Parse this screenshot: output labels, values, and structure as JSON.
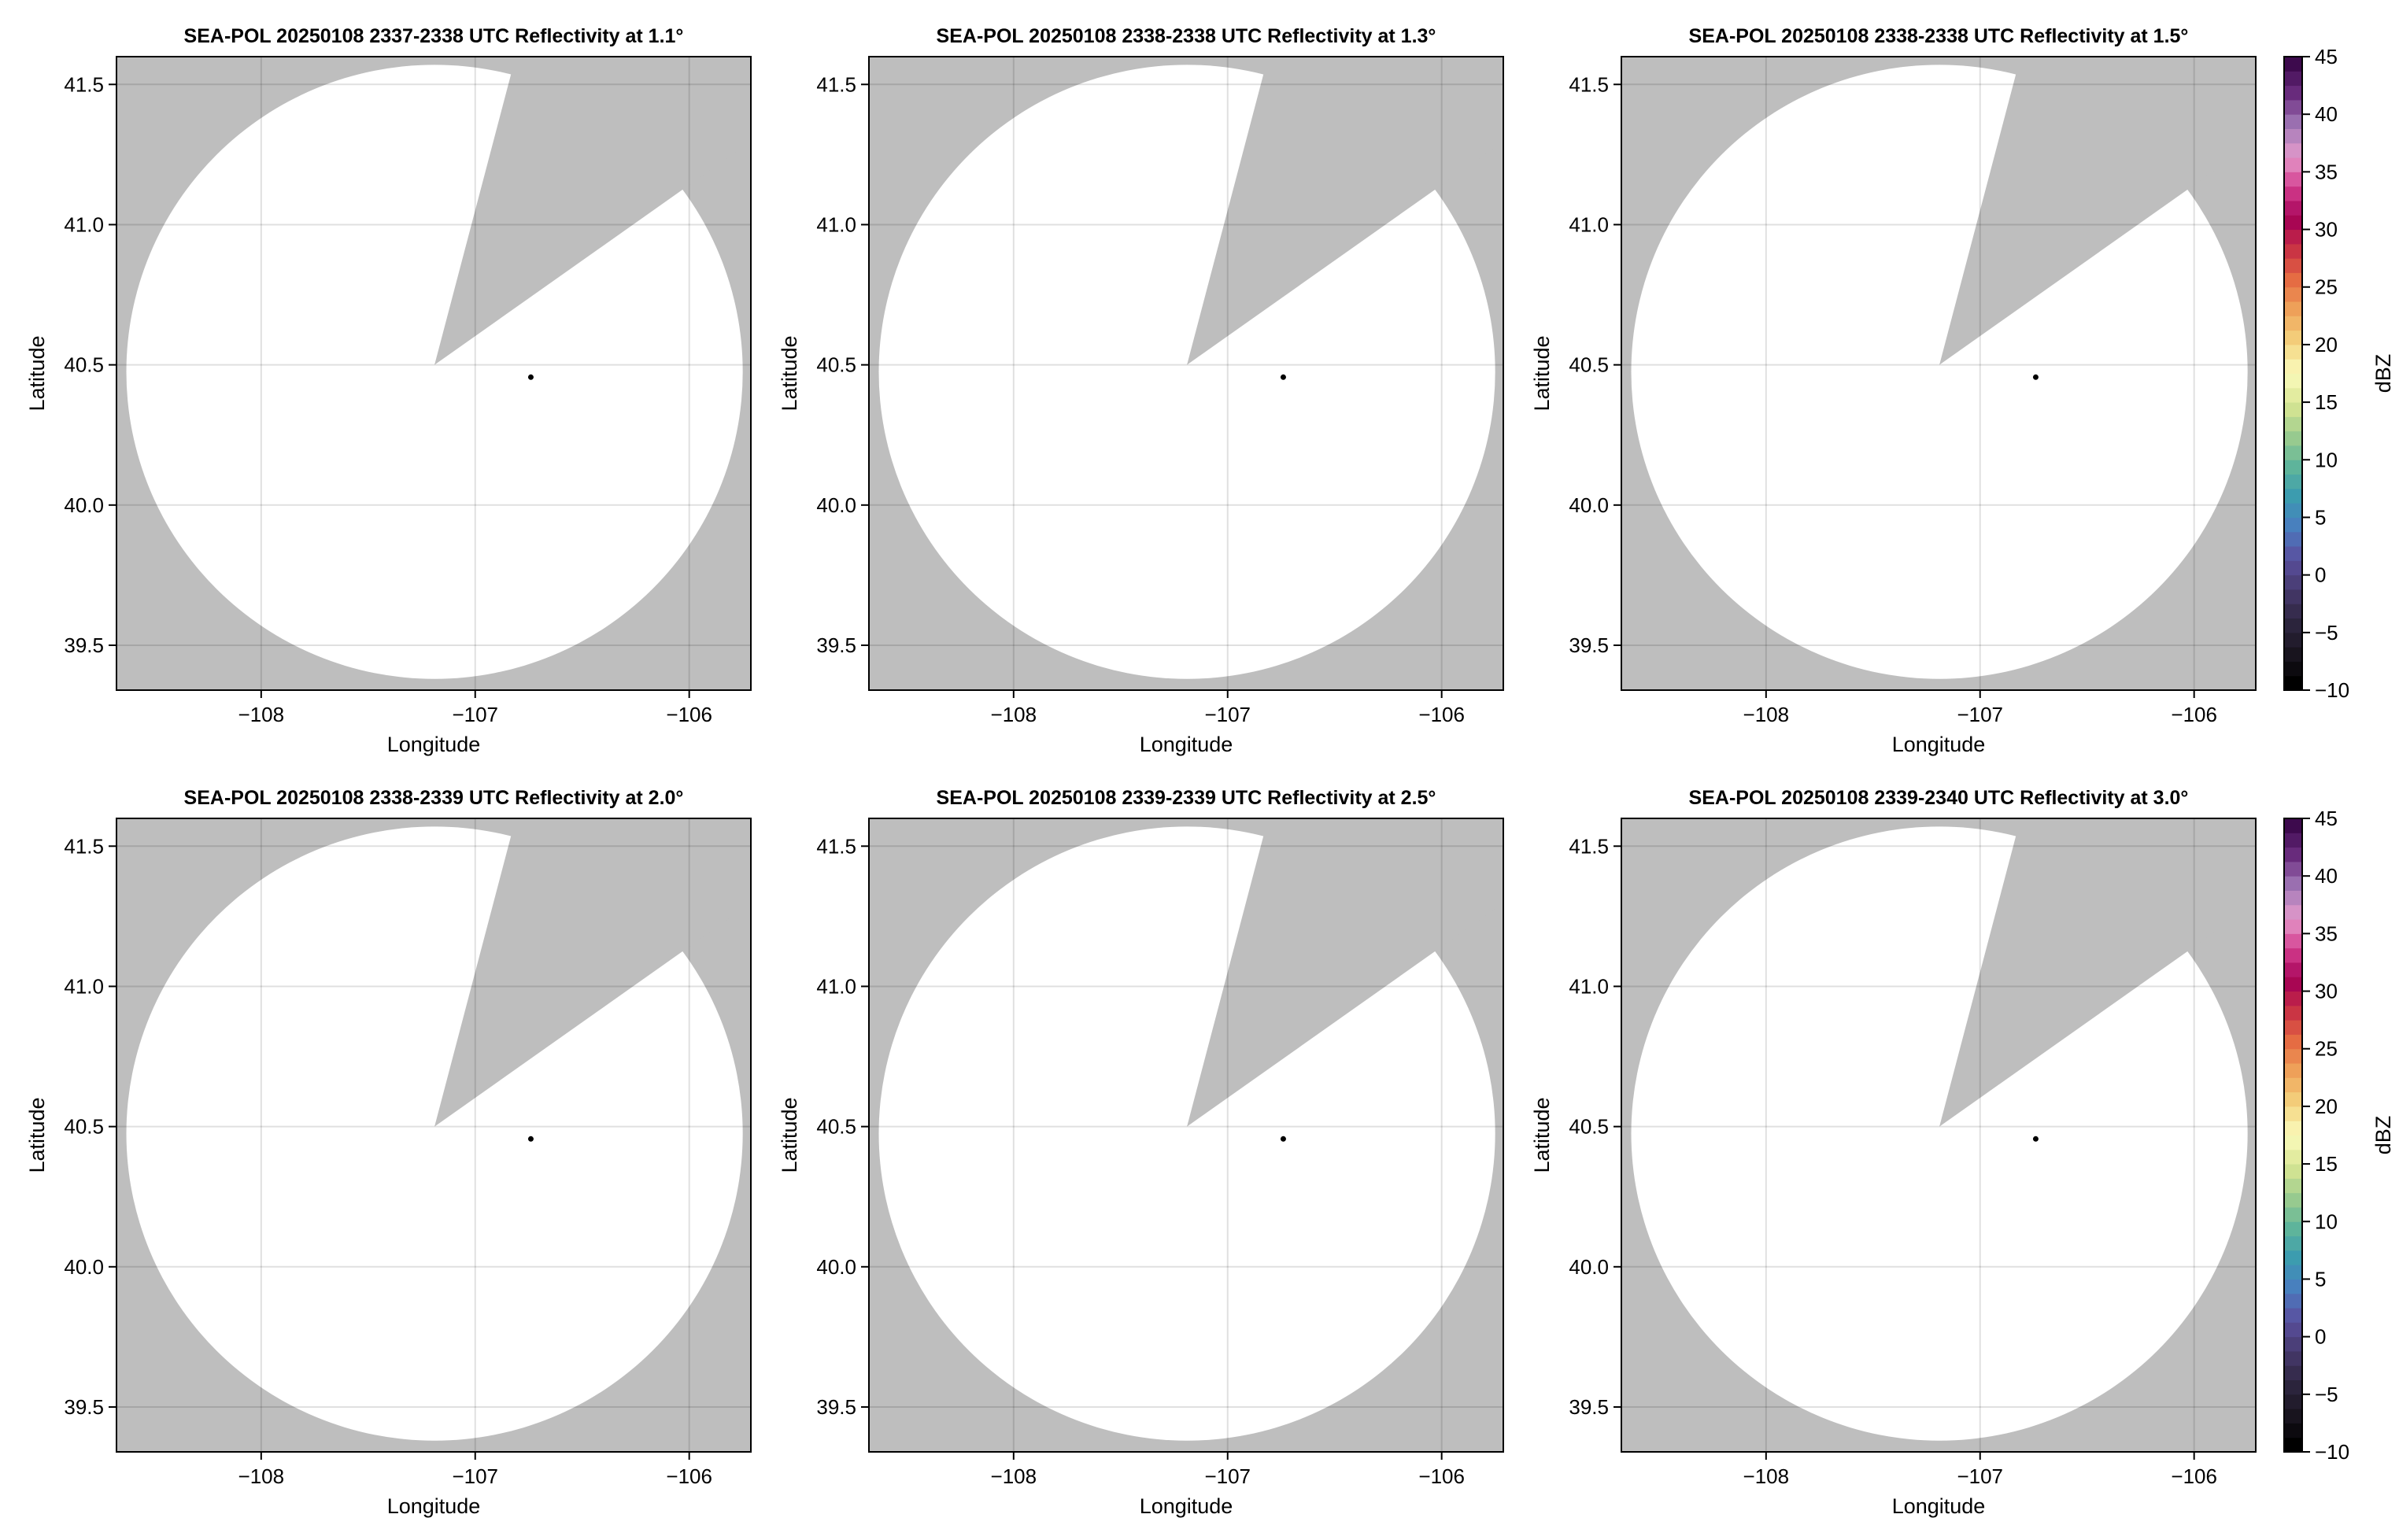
{
  "chart_data": [
    {
      "type": "heatmap",
      "title": "SEA-POL 20250108 2337-2338 UTC Reflectivity at 1.1°",
      "xlabel": "Longitude",
      "ylabel": "Latitude",
      "colorbar": false
    },
    {
      "type": "heatmap",
      "title": "SEA-POL 20250108 2338-2338 UTC Reflectivity at 1.3°",
      "xlabel": "Longitude",
      "ylabel": "Latitude",
      "colorbar": false
    },
    {
      "type": "heatmap",
      "title": "SEA-POL 20250108 2338-2338 UTC Reflectivity at 1.5°",
      "xlabel": "Longitude",
      "ylabel": "Latitude",
      "colorbar": true
    },
    {
      "type": "heatmap",
      "title": "SEA-POL 20250108 2338-2339 UTC Reflectivity at 2.0°",
      "xlabel": "Longitude",
      "ylabel": "Latitude",
      "colorbar": false
    },
    {
      "type": "heatmap",
      "title": "SEA-POL 20250108 2339-2339 UTC Reflectivity at 2.5°",
      "xlabel": "Longitude",
      "ylabel": "Latitude",
      "colorbar": false
    },
    {
      "type": "heatmap",
      "title": "SEA-POL 20250108 2339-2340 UTC Reflectivity at 3.0°",
      "xlabel": "Longitude",
      "ylabel": "Latitude",
      "colorbar": true
    }
  ],
  "shared": {
    "xlim": [
      -108.676,
      -105.712
    ],
    "ylim": [
      39.34,
      41.599
    ],
    "xticks": [
      -108,
      -107,
      -106
    ],
    "xtick_labels": [
      "−108",
      "−107",
      "−106"
    ],
    "yticks": [
      39.5,
      40.0,
      40.5,
      41.0,
      41.5
    ],
    "ytick_labels": [
      "39.5",
      "40.0",
      "40.5",
      "41.0",
      "41.5"
    ],
    "grid": true,
    "data_values": "none (all missing within range)",
    "radar_center": [
      -107.19,
      40.475
    ],
    "range_ring_deg": [
      1.44,
      1.095
    ],
    "blocked_sector_edges": [
      [
        -106.83,
        41.544
      ],
      [
        -106.04,
        41.12
      ]
    ],
    "marker_point": [
      -106.74,
      40.456
    ],
    "colors": {
      "outside_range": "#bebebe",
      "in_range_no_echo": "#ffffff",
      "grid": "#d9d9d9",
      "marker": "#000000"
    }
  },
  "colorbar": {
    "label": "dBZ",
    "range": [
      -10,
      45
    ],
    "ticks": [
      -10,
      -5,
      0,
      5,
      10,
      15,
      20,
      25,
      30,
      35,
      40,
      45
    ],
    "tick_labels": [
      "−10",
      "−5",
      "0",
      "5",
      "10",
      "15",
      "20",
      "25",
      "30",
      "35",
      "40",
      "45"
    ],
    "colormap_stops": [
      "#000000",
      "#1a1520",
      "#2e2640",
      "#46396c",
      "#5a4f9e",
      "#4a7cc0",
      "#3a9bb0",
      "#5fb59a",
      "#9dcc8e",
      "#d9e693",
      "#fbfbbd",
      "#f4d47f",
      "#efa55b",
      "#e66d43",
      "#c93244",
      "#a40055",
      "#d33c8e",
      "#e49acb",
      "#a27ab8",
      "#6b2d80",
      "#3d0a4d"
    ]
  }
}
